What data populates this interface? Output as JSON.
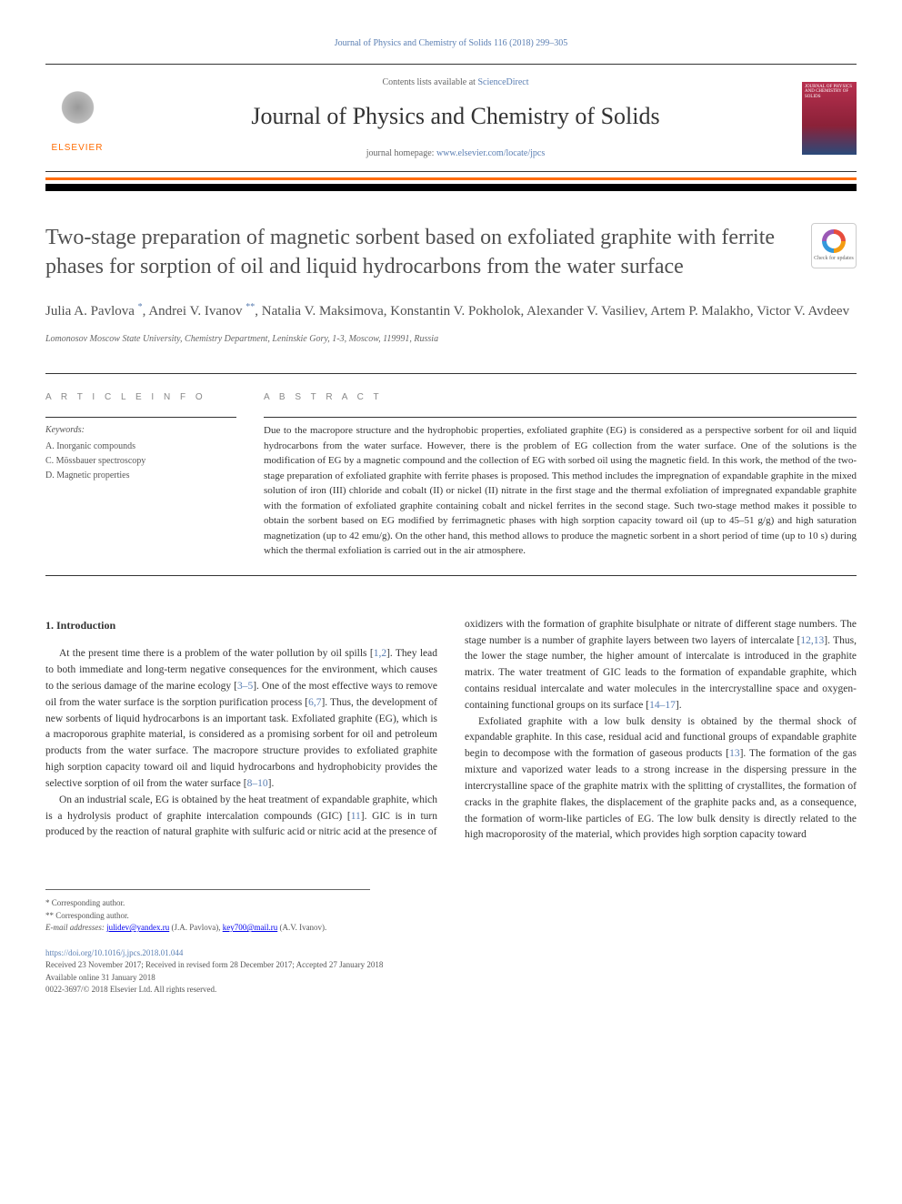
{
  "citation": "Journal of Physics and Chemistry of Solids 116 (2018) 299–305",
  "header": {
    "publisher": "ELSEVIER",
    "contents_prefix": "Contents lists available at ",
    "contents_link": "ScienceDirect",
    "journal_name": "Journal of Physics and Chemistry of Solids",
    "homepage_prefix": "journal homepage: ",
    "homepage_url": "www.elsevier.com/locate/jpcs",
    "cover_text": "JOURNAL OF PHYSICS AND CHEMISTRY OF SOLIDS"
  },
  "crossmark": {
    "label": "Check for updates"
  },
  "article": {
    "title": "Two-stage preparation of magnetic sorbent based on exfoliated graphite with ferrite phases for sorption of oil and liquid hydrocarbons from the water surface",
    "authors_html": "Julia A. Pavlova <sup>*</sup>, Andrei V. Ivanov <sup>**</sup>, Natalia V. Maksimova, Konstantin V. Pokholok, Alexander V. Vasiliev, Artem P. Malakho, Victor V. Avdeev",
    "affiliation": "Lomonosov Moscow State University, Chemistry Department, Leninskie Gory, 1-3, Moscow, 119991, Russia"
  },
  "labels": {
    "article_info": "A R T I C L E  I N F O",
    "abstract": "A B S T R A C T"
  },
  "keywords": {
    "heading": "Keywords:",
    "items": [
      "A. Inorganic compounds",
      "C. Mössbauer spectroscopy",
      "D. Magnetic properties"
    ]
  },
  "abstract": "Due to the macropore structure and the hydrophobic properties, exfoliated graphite (EG) is considered as a perspective sorbent for oil and liquid hydrocarbons from the water surface. However, there is the problem of EG collection from the water surface. One of the solutions is the modification of EG by a magnetic compound and the collection of EG with sorbed oil using the magnetic field. In this work, the method of the two-stage preparation of exfoliated graphite with ferrite phases is proposed. This method includes the impregnation of expandable graphite in the mixed solution of iron (III) chloride and cobalt (II) or nickel (II) nitrate in the first stage and the thermal exfoliation of impregnated expandable graphite with the formation of exfoliated graphite containing cobalt and nickel ferrites in the second stage. Such two-stage method makes it possible to obtain the sorbent based on EG modified by ferrimagnetic phases with high sorption capacity toward oil (up to 45–51 g/g) and high saturation magnetization (up to 42 emu/g). On the other hand, this method allows to produce the magnetic sorbent in a short period of time (up to 10 s) during which the thermal exfoliation is carried out in the air atmosphere.",
  "body": {
    "section_heading": "1. Introduction",
    "col1_p1": "At the present time there is a problem of the water pollution by oil spills [1,2]. They lead to both immediate and long-term negative consequences for the environment, which causes to the serious damage of the marine ecology [3–5]. One of the most effective ways to remove oil from the water surface is the sorption purification process [6,7]. Thus, the development of new sorbents of liquid hydrocarbons is an important task. Exfoliated graphite (EG), which is a macroporous graphite material, is considered as a promising sorbent for oil and petroleum products from the water surface. The macropore structure provides to exfoliated graphite high sorption capacity toward oil and liquid hydrocarbons and hydrophobicity provides the selective sorption of oil from the water surface [8–10].",
    "col1_p2": "On an industrial scale, EG is obtained by the heat treatment of expandable graphite, which is a hydrolysis product of graphite intercalation compounds (GIC) [11]. GIC is in turn produced by the reaction of natural graphite with sulfuric acid or nitric acid at the presence of",
    "col2_p1": "oxidizers with the formation of graphite bisulphate or nitrate of different stage numbers. The stage number is a number of graphite layers between two layers of intercalate [12,13]. Thus, the lower the stage number, the higher amount of intercalate is introduced in the graphite matrix. The water treatment of GIC leads to the formation of expandable graphite, which contains residual intercalate and water molecules in the intercrystalline space and oxygen-containing functional groups on its surface [14–17].",
    "col2_p2": "Exfoliated graphite with a low bulk density is obtained by the thermal shock of expandable graphite. In this case, residual acid and functional groups of expandable graphite begin to decompose with the formation of gaseous products [13]. The formation of the gas mixture and vaporized water leads to a strong increase in the dispersing pressure in the intercrystalline space of the graphite matrix with the splitting of crystallites, the formation of cracks in the graphite flakes, the displacement of the graphite packs and, as a consequence, the formation of worm-like particles of EG. The low bulk density is directly related to the high macroporosity of the material, which provides high sorption capacity toward"
  },
  "footer": {
    "corr1": "* Corresponding author.",
    "corr2": "** Corresponding author.",
    "email_label": "E-mail addresses: ",
    "email1": "julidev@yandex.ru",
    "email1_name": " (J.A. Pavlova), ",
    "email2": "key700@mail.ru",
    "email2_name": " (A.V. Ivanov).",
    "doi": "https://doi.org/10.1016/j.jpcs.2018.01.044",
    "dates": "Received 23 November 2017; Received in revised form 28 December 2017; Accepted 27 January 2018",
    "available": "Available online 31 January 2018",
    "copyright": "0022-3697/© 2018 Elsevier Ltd. All rights reserved."
  },
  "colors": {
    "link": "#5b7fb3",
    "orange": "#ff6b00",
    "text": "#333333",
    "muted": "#666666"
  }
}
